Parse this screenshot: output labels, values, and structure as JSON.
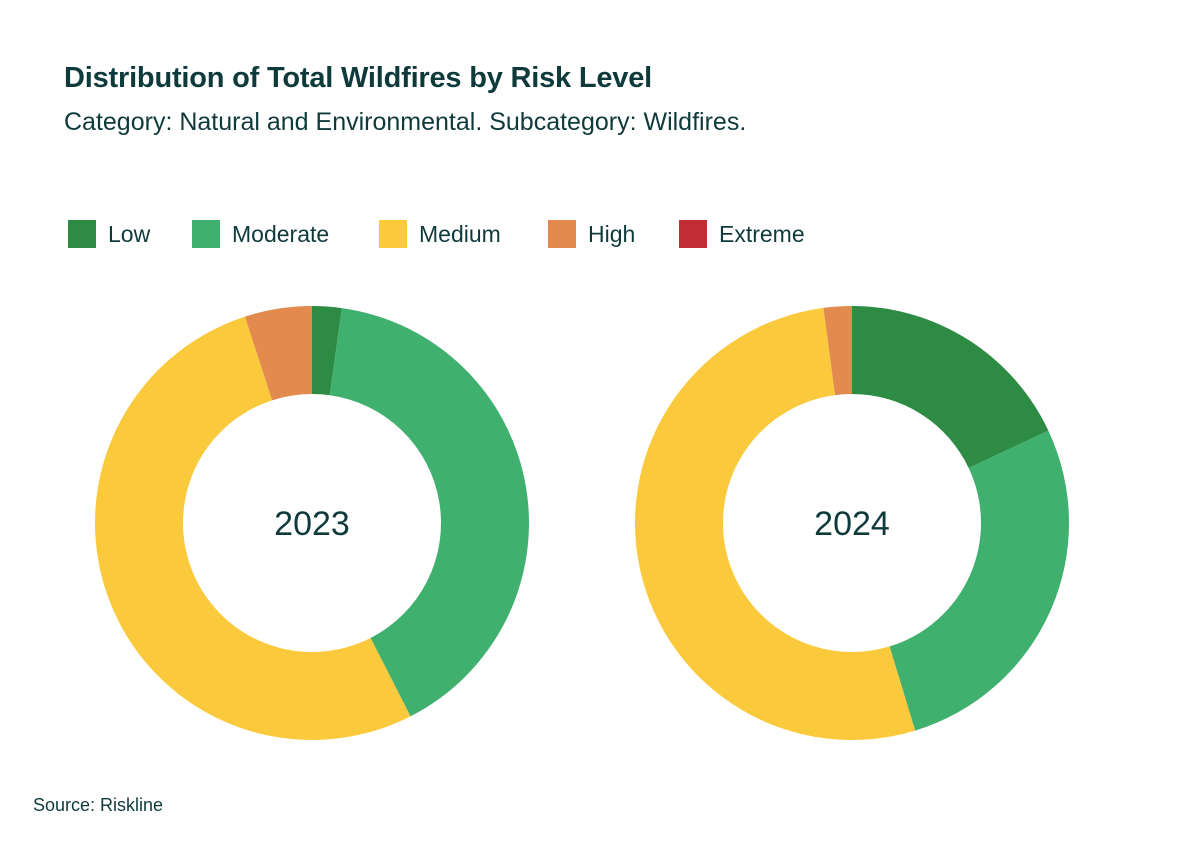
{
  "header": {
    "title": "Distribution of Total Wildfires by Risk Level",
    "subtitle": "Category: Natural and Environmental. Subcategory: Wildfires."
  },
  "legend": {
    "items": [
      {
        "label": "Low",
        "color": "#2e8b43"
      },
      {
        "label": "Moderate",
        "color": "#40b06f"
      },
      {
        "label": "Medium",
        "color": "#fbc93c"
      },
      {
        "label": "High",
        "color": "#e38a4e"
      },
      {
        "label": "Extreme",
        "color": "#c12d34"
      }
    ]
  },
  "footer": {
    "source": "Source: Riskline"
  },
  "chart_data": [
    {
      "type": "pie",
      "variant": "donut",
      "center_label": "2023",
      "categories": [
        "Low",
        "Moderate",
        "Medium",
        "High",
        "Extreme"
      ],
      "values": [
        2.2,
        40.3,
        52.5,
        5.0,
        0.0
      ],
      "unit": "percent",
      "colors": [
        "#2e8b43",
        "#40b06f",
        "#fbc93c",
        "#e38a4e",
        "#c12d34"
      ]
    },
    {
      "type": "pie",
      "variant": "donut",
      "center_label": "2024",
      "categories": [
        "Low",
        "Moderate",
        "Medium",
        "High",
        "Extreme"
      ],
      "values": [
        18.0,
        27.3,
        52.6,
        2.1,
        0.0
      ],
      "unit": "percent",
      "colors": [
        "#2e8b43",
        "#40b06f",
        "#fbc93c",
        "#e38a4e",
        "#c12d34"
      ]
    }
  ]
}
